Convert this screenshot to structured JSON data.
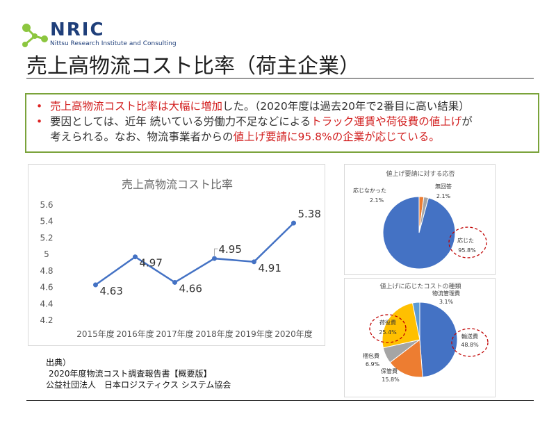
{
  "logo": {
    "word": "NRIC",
    "subtitle": "Nittsu Research Institute and Consulting"
  },
  "colors": {
    "accent_red": "#d21f1f",
    "border_green": "#7aa33a",
    "line_blue": "#4472c4",
    "logo_green": "#8cc63f",
    "logo_navy": "#1f3f7a"
  },
  "title": "売上高物流コスト比率（荷主企業）",
  "summary": {
    "line1": [
      {
        "text": "売上高物流コスト比率は大幅に増加",
        "red": true
      },
      {
        "text": "した。（2020年度は過去20年で2番目に高い結果）",
        "red": false
      }
    ],
    "line2": [
      {
        "text": "要因としては、近年 続いている労働力不足などによる",
        "red": false
      },
      {
        "text": "トラック運賃や荷役費の値上げ",
        "red": true
      },
      {
        "text": "が",
        "red": false
      }
    ],
    "line3": [
      {
        "text": "考えられる。なお、物流事業者からの",
        "red": false
      },
      {
        "text": "値上げ要請に95.8%の企業が応じている。",
        "red": true
      }
    ]
  },
  "chart_data": [
    {
      "type": "line",
      "title": "売上高物流コスト比率",
      "categories": [
        "2015年度",
        "2016年度",
        "2017年度",
        "2018年度",
        "2019年度",
        "2020年度"
      ],
      "series": [
        {
          "values": [
            4.63,
            4.97,
            4.66,
            4.95,
            4.91,
            5.38
          ]
        }
      ],
      "ylim": [
        4.2,
        5.6
      ],
      "yticks": [
        "5.6",
        "5.4",
        "5.2",
        "5",
        "4.8",
        "4.6",
        "4.4",
        "4.2"
      ],
      "grid": false
    },
    {
      "type": "pie",
      "title": "値上げ要請に対する応否",
      "slices": [
        {
          "name": "応じた",
          "value": 95.8,
          "label": "95.8%",
          "color": "#4472c4"
        },
        {
          "name": "応じなかった",
          "value": 2.1,
          "label": "2.1%",
          "color": "#ed7d31"
        },
        {
          "name": "無回答",
          "value": 2.1,
          "label": "2.1%",
          "color": "#a5a5a5"
        }
      ]
    },
    {
      "type": "pie",
      "title": "値上げに応じたコストの種類",
      "slices": [
        {
          "name": "輸送費",
          "value": 48.8,
          "label": "48.8%",
          "color": "#4472c4"
        },
        {
          "name": "保管費",
          "value": 15.8,
          "label": "15.8%",
          "color": "#ed7d31"
        },
        {
          "name": "梱包費",
          "value": 6.9,
          "label": "6.9%",
          "color": "#a5a5a5"
        },
        {
          "name": "荷役費",
          "value": 25.4,
          "label": "25.4%",
          "color": "#ffc000"
        },
        {
          "name": "物流管理費",
          "value": 3.1,
          "label": "3.1%",
          "color": "#5b9bd5"
        }
      ]
    }
  ],
  "source": {
    "heading": "出典）",
    "line1": "2020年度物流コスト調査報告書【概要版】",
    "line2": "公益社団法人　日本ロジスティクス システム協会"
  }
}
